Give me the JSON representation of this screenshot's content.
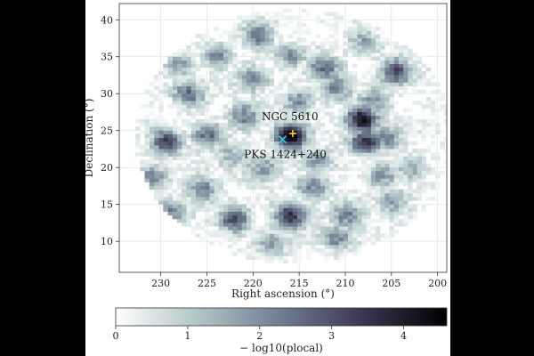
{
  "chart_data": {
    "type": "heatmap",
    "title": "",
    "xlabel": "Right ascension (°)",
    "ylabel": "Declination (°)",
    "xlim": [
      234.5,
      199
    ],
    "ylim": [
      5.8,
      42.2
    ],
    "x_ticks": [
      230,
      225,
      220,
      215,
      210,
      205,
      200
    ],
    "y_ticks": [
      10,
      15,
      20,
      25,
      30,
      35,
      40
    ],
    "x_tick_labels": [
      "230",
      "225",
      "220",
      "215",
      "210",
      "205",
      "200"
    ],
    "y_tick_labels": [
      "10",
      "15",
      "20",
      "25",
      "30",
      "35",
      "40"
    ],
    "grid": true,
    "colormap": [
      "#ffffff",
      "#b9cccc",
      "#707d91",
      "#3a3550",
      "#000000"
    ],
    "colorbar": {
      "label": "− log10(plocal)",
      "range": [
        0,
        4.6
      ],
      "ticks": [
        0,
        1,
        2,
        3,
        4
      ],
      "tick_labels": [
        "0",
        "1",
        "2",
        "3",
        "4"
      ]
    },
    "region": {
      "center": [
        215.5,
        24.2
      ],
      "radius_deg": 17.2
    },
    "hotspots": [
      {
        "ra": 216.0,
        "dec": 24.3,
        "value": 4.5
      },
      {
        "ra": 208.2,
        "dec": 26.5,
        "value": 4.0
      },
      {
        "ra": 207.8,
        "dec": 23.5,
        "value": 3.5
      },
      {
        "ra": 204.5,
        "dec": 33.0,
        "value": 3.2
      },
      {
        "ra": 216.0,
        "dec": 13.5,
        "value": 3.4
      },
      {
        "ra": 222.0,
        "dec": 13.0,
        "value": 3.0
      },
      {
        "ra": 229.5,
        "dec": 23.5,
        "value": 3.0
      },
      {
        "ra": 212.5,
        "dec": 33.5,
        "value": 2.6
      },
      {
        "ra": 219.5,
        "dec": 38.0,
        "value": 2.4
      },
      {
        "ra": 227.0,
        "dec": 30.0,
        "value": 2.4
      },
      {
        "ra": 225.0,
        "dec": 24.5,
        "value": 2.3
      },
      {
        "ra": 211.0,
        "dec": 30.8,
        "value": 2.3
      },
      {
        "ra": 210.0,
        "dec": 13.5,
        "value": 2.1
      },
      {
        "ra": 205.5,
        "dec": 24.0,
        "value": 2.0
      },
      {
        "ra": 213.5,
        "dec": 17.5,
        "value": 2.2
      },
      {
        "ra": 221.0,
        "dec": 27.0,
        "value": 2.0
      },
      {
        "ra": 225.5,
        "dec": 17.0,
        "value": 2.1
      },
      {
        "ra": 229.0,
        "dec": 14.0,
        "value": 1.9
      },
      {
        "ra": 220.0,
        "dec": 32.0,
        "value": 1.8
      },
      {
        "ra": 215.0,
        "dec": 29.0,
        "value": 1.8
      },
      {
        "ra": 207.0,
        "dec": 29.0,
        "value": 1.8
      },
      {
        "ra": 203.0,
        "dec": 20.0,
        "value": 1.7
      },
      {
        "ra": 231.0,
        "dec": 19.0,
        "value": 1.8
      },
      {
        "ra": 224.0,
        "dec": 35.0,
        "value": 1.8
      },
      {
        "ra": 213.0,
        "dec": 21.0,
        "value": 1.7
      },
      {
        "ra": 211.0,
        "dec": 10.5,
        "value": 1.9
      },
      {
        "ra": 218.0,
        "dec": 9.5,
        "value": 1.6
      },
      {
        "ra": 208.0,
        "dec": 37.0,
        "value": 1.6
      },
      {
        "ra": 205.0,
        "dec": 15.5,
        "value": 1.6
      },
      {
        "ra": 219.0,
        "dec": 20.0,
        "value": 1.7
      },
      {
        "ra": 222.5,
        "dec": 21.5,
        "value": 1.6
      },
      {
        "ra": 206.0,
        "dec": 19.0,
        "value": 1.8
      },
      {
        "ra": 216.0,
        "dec": 35.0,
        "value": 1.7
      },
      {
        "ra": 228.0,
        "dec": 34.0,
        "value": 1.6
      }
    ],
    "markers": [
      {
        "label": "NGC 5610",
        "ra": 215.7,
        "dec": 24.6,
        "symbol": "+",
        "color": "#ffd21a",
        "label_ra": 216.0,
        "label_dec": 26.4
      },
      {
        "label": "PKS 1424+240",
        "ra": 216.8,
        "dec": 23.8,
        "symbol": "x",
        "color": "#2fd3e6",
        "label_ra": 216.5,
        "label_dec": 21.3
      }
    ]
  }
}
